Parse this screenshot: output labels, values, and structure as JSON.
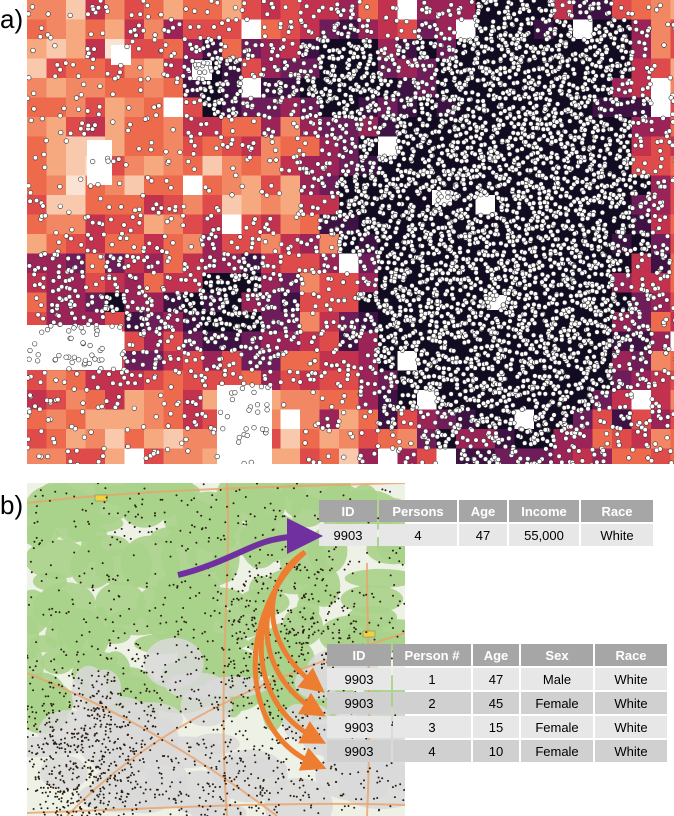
{
  "panels": {
    "a": "a)",
    "b": "b)"
  },
  "colors": {
    "density_ramp": [
      "#fbe3d4",
      "#f9c9ae",
      "#f6a87f",
      "#f28763",
      "#ed6a4d",
      "#df4a4a",
      "#c2324f",
      "#9c2357",
      "#6f1c5a",
      "#3f1245",
      "#120b22"
    ],
    "no_data": "#ffffff",
    "point_fill": "#ffffff",
    "point_stroke": "#333333",
    "household_arrow": "#7030a0",
    "person_arrow": "#ed7d31",
    "table_header": "#a6a6a6",
    "table_row": "#e7e7e7",
    "table_row_alt": "#d0d0d0",
    "basemap_green": "#a9d28a",
    "basemap_light": "#eef2e6",
    "basemap_urban": "#d9d9d9",
    "synthetic_point": "#2b1e12"
  },
  "household_table": {
    "headers": [
      "ID",
      "Persons",
      "Age",
      "Income",
      "Race"
    ],
    "rows": [
      [
        "9903",
        "4",
        "47",
        "55,000",
        "White"
      ]
    ]
  },
  "person_table": {
    "headers": [
      "ID",
      "Person #",
      "Age",
      "Sex",
      "Race"
    ],
    "rows": [
      [
        "9903",
        "1",
        "47",
        "Male",
        "White"
      ],
      [
        "9903",
        "2",
        "45",
        "Female",
        "White"
      ],
      [
        "9903",
        "3",
        "15",
        "Female",
        "White"
      ],
      [
        "9903",
        "4",
        "10",
        "Female",
        "White"
      ]
    ]
  }
}
